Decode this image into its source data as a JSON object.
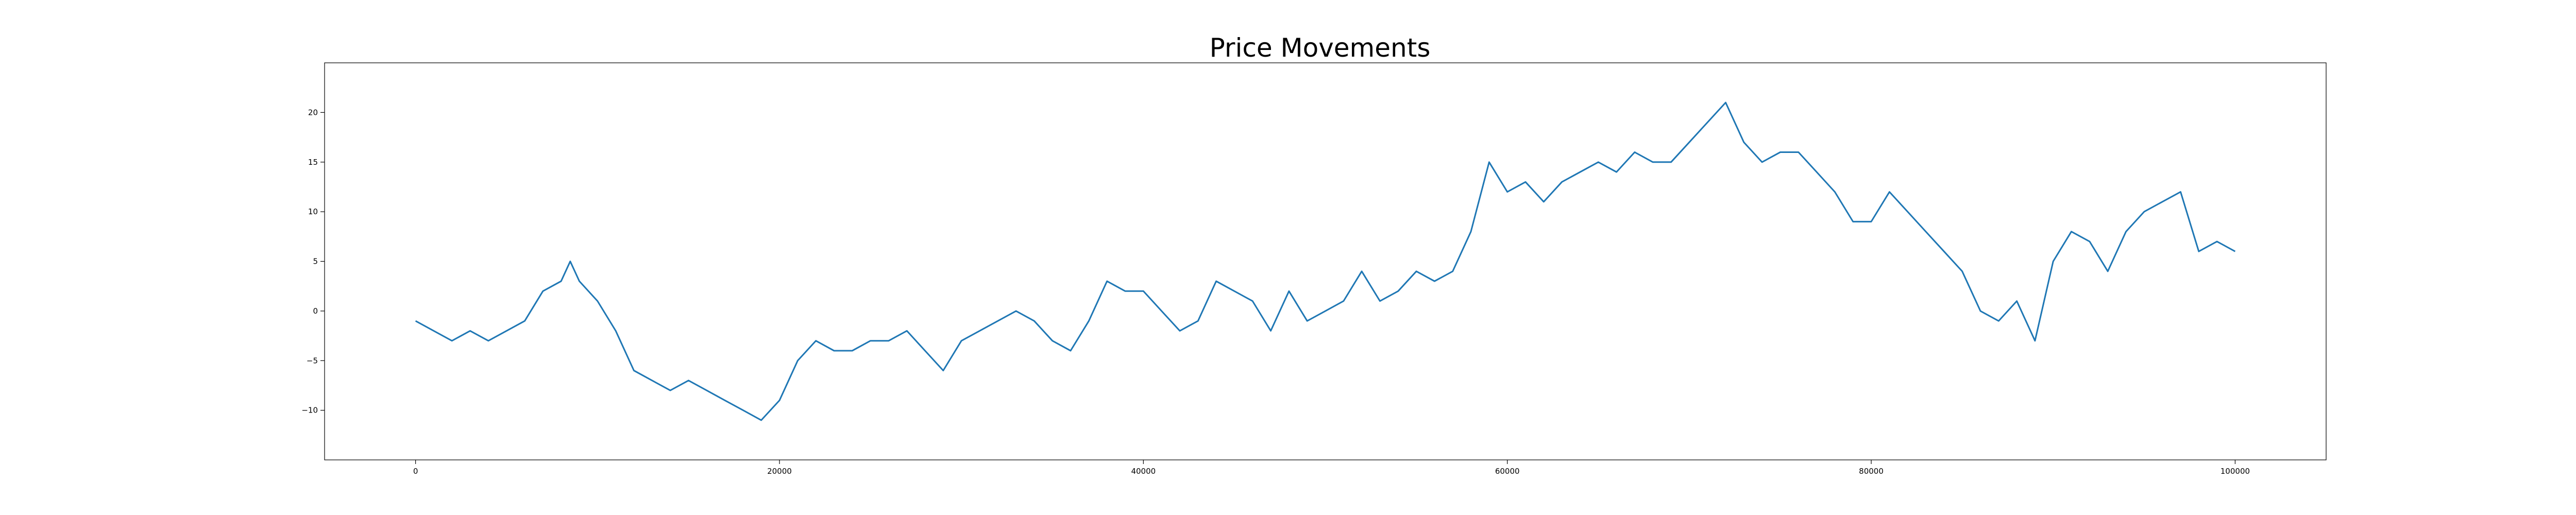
{
  "chart_data": {
    "type": "line",
    "title": "Price Movements",
    "xlabel": "",
    "ylabel": "",
    "xlim": [
      -5000,
      105000
    ],
    "ylim": [
      -15,
      25
    ],
    "xticks": [
      0,
      20000,
      40000,
      60000,
      80000,
      100000
    ],
    "yticks": [
      -10,
      -5,
      0,
      5,
      10,
      15,
      20
    ],
    "grid": false,
    "legend": "none",
    "colors": {
      "line": "#1f77b4",
      "axes": "#000000",
      "background": "#ffffff"
    },
    "series": [
      {
        "x": [
          0,
          1000,
          2000,
          3000,
          4000,
          5000,
          6000,
          7000,
          8000,
          8500,
          9000,
          10000,
          11000,
          12000,
          13000,
          14000,
          15000,
          16000,
          17000,
          18000,
          19000,
          20000,
          21000,
          22000,
          23000,
          24000,
          25000,
          26000,
          27000,
          28000,
          29000,
          30000,
          31000,
          32000,
          33000,
          34000,
          35000,
          36000,
          37000,
          38000,
          39000,
          40000,
          41000,
          42000,
          43000,
          44000,
          45000,
          46000,
          47000,
          48000,
          49000,
          50000,
          51000,
          52000,
          53000,
          54000,
          55000,
          56000,
          57000,
          58000,
          59000,
          60000,
          61000,
          62000,
          63000,
          64000,
          65000,
          66000,
          67000,
          68000,
          69000,
          70000,
          71000,
          72000,
          73000,
          74000,
          75000,
          76000,
          77000,
          78000,
          79000,
          80000,
          81000,
          82000,
          83000,
          84000,
          85000,
          86000,
          87000,
          88000,
          89000,
          90000,
          91000,
          92000,
          93000,
          94000,
          95000,
          96000,
          97000,
          98000,
          99000,
          100000
        ],
        "values": [
          -1,
          -2,
          -3,
          -2,
          -3,
          -2,
          -1,
          2,
          3,
          5,
          3,
          1,
          -2,
          -6,
          -7,
          -8,
          -7,
          -8,
          -9,
          -10,
          -11,
          -9,
          -5,
          -3,
          -4,
          -4,
          -3,
          -3,
          -2,
          -4,
          -6,
          -3,
          -2,
          -1,
          0,
          -1,
          -3,
          -4,
          -1,
          3,
          2,
          2,
          0,
          -2,
          -1,
          3,
          2,
          1,
          -2,
          2,
          -1,
          0,
          1,
          4,
          1,
          2,
          4,
          3,
          4,
          8,
          15,
          12,
          13,
          11,
          13,
          14,
          15,
          14,
          16,
          15,
          15,
          17,
          19,
          21,
          17,
          15,
          16,
          16,
          14,
          12,
          9,
          9,
          12,
          10,
          8,
          6,
          4,
          0,
          -1,
          1,
          -3,
          5,
          8,
          7,
          4,
          8,
          10,
          11,
          12,
          6,
          7,
          6
        ]
      }
    ]
  }
}
